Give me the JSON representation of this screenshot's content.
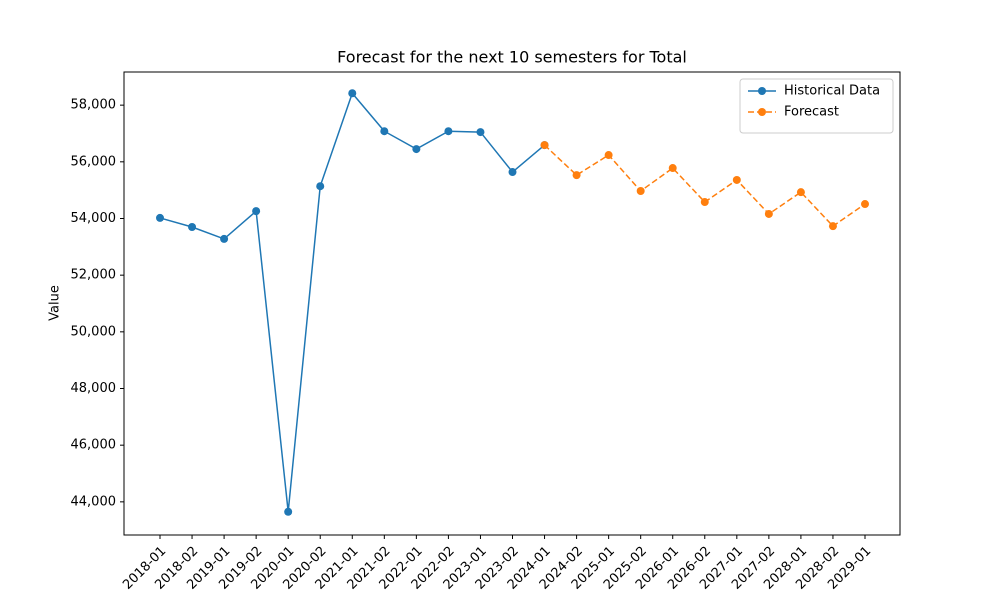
{
  "chart_data": {
    "type": "line",
    "title": "Forecast for the next 10 semesters for Total",
    "y_label": "Value",
    "categories": [
      "2018-01",
      "2018-02",
      "2019-01",
      "2019-02",
      "2020-01",
      "2020-02",
      "2021-01",
      "2021-02",
      "2022-01",
      "2022-02",
      "2023-01",
      "2023-02",
      "2024-01",
      "2024-02",
      "2025-01",
      "2025-02",
      "2026-01",
      "2026-02",
      "2027-01",
      "2027-02",
      "2028-01",
      "2028-02",
      "2029-01"
    ],
    "series": [
      {
        "name": "Historical Data",
        "color": "#1f77b4",
        "dashed": false,
        "values": [
          54020,
          53700,
          53280,
          54260,
          43650,
          55140,
          58420,
          57080,
          56450,
          57080,
          57050,
          55640,
          56590,
          null,
          null,
          null,
          null,
          null,
          null,
          null,
          null,
          null,
          null
        ]
      },
      {
        "name": "Forecast",
        "color": "#ff7f0e",
        "dashed": true,
        "values": [
          null,
          null,
          null,
          null,
          null,
          null,
          null,
          null,
          null,
          null,
          null,
          null,
          56590,
          55530,
          56240,
          54970,
          55780,
          54580,
          55360,
          54160,
          54930,
          53730,
          54510
        ]
      }
    ],
    "ylim": [
      42830,
      59170
    ],
    "yticks": [
      {
        "value": 44000,
        "label": "44,000"
      },
      {
        "value": 46000,
        "label": "46,000"
      },
      {
        "value": 48000,
        "label": "48,000"
      },
      {
        "value": 50000,
        "label": "50,000"
      },
      {
        "value": 52000,
        "label": "52,000"
      },
      {
        "value": 54000,
        "label": "54,000"
      },
      {
        "value": 56000,
        "label": "56,000"
      },
      {
        "value": 58000,
        "label": "58,000"
      }
    ],
    "legend": "upper right",
    "grid": false
  }
}
